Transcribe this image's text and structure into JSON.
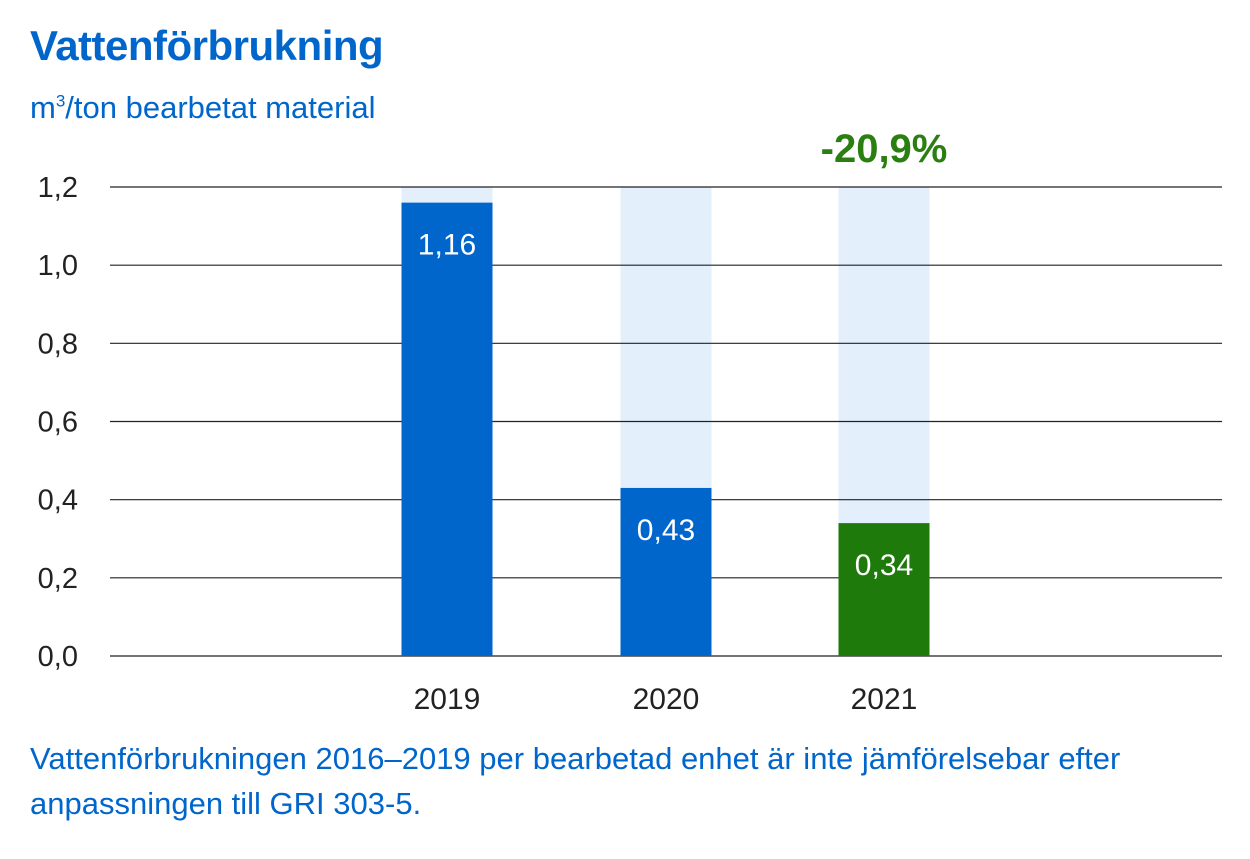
{
  "chart_data": {
    "type": "bar",
    "title": "Vattenförbrukning",
    "unit_prefix": "m",
    "unit_superscript": "3",
    "unit_suffix": "/ton bearbetat material",
    "categories": [
      "2019",
      "2020",
      "2021"
    ],
    "values": [
      1.16,
      0.43,
      0.34
    ],
    "value_labels": [
      "1,16",
      "0,43",
      "0,34"
    ],
    "bar_colors": [
      "#0066cc",
      "#0066cc",
      "#1f7a0c"
    ],
    "background_bar_color": "#e3f0fb",
    "ylim": [
      0,
      1.2
    ],
    "yticks": [
      0,
      0.2,
      0.4,
      0.6,
      0.8,
      1.0,
      1.2
    ],
    "ytick_labels": [
      "0,0",
      "0,2",
      "0,4",
      "0,6",
      "0,8",
      "1,0",
      "1,2"
    ],
    "grid": true,
    "annotation": {
      "text": "-20,9%",
      "category": "2021",
      "color": "#2a7f10"
    },
    "footnote": "Vattenförbrukningen 2016–2019 per bearbetad enhet är inte jämförelsebar efter anpassningen till GRI 303-5."
  }
}
